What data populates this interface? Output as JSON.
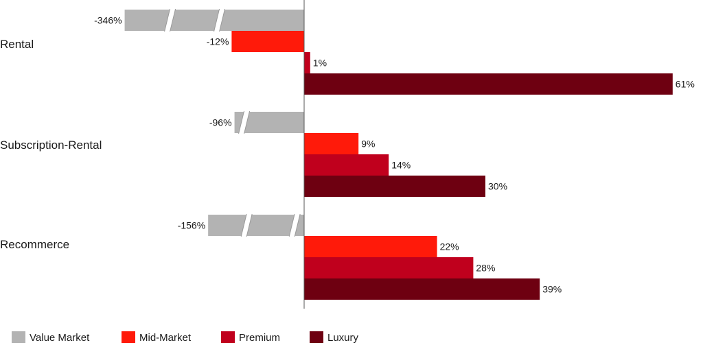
{
  "chart_data": {
    "type": "bar",
    "orientation": "horizontal",
    "categories": [
      "Rental",
      "Subscription-Rental",
      "Recommerce"
    ],
    "series": [
      {
        "name": "Value Market",
        "color": "#b3b3b3",
        "values": [
          -346,
          -96,
          -156
        ],
        "labels": [
          "-346%",
          "-96%",
          "-156%"
        ],
        "axis_break": true
      },
      {
        "name": "Mid-Market",
        "color": "#ff1a0a",
        "values": [
          -12,
          9,
          22
        ],
        "labels": [
          "-12%",
          "9%",
          "22%"
        ]
      },
      {
        "name": "Premium",
        "color": "#c0001d",
        "values": [
          1,
          14,
          28
        ],
        "labels": [
          "1%",
          "14%",
          "28%"
        ]
      },
      {
        "name": "Luxury",
        "color": "#6e0011",
        "values": [
          61,
          30,
          39
        ],
        "labels": [
          "61%",
          "30%",
          "39%"
        ]
      }
    ],
    "legend_position": "bottom-left",
    "grid": false
  }
}
